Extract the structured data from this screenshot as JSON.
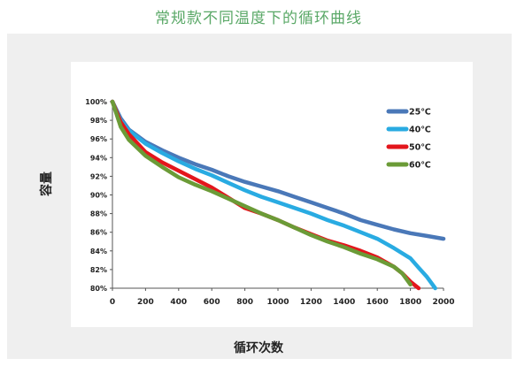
{
  "page": {
    "title": "常规款不同温度下的循环曲线"
  },
  "chart_data": {
    "type": "line",
    "title": "",
    "xlabel": "循环次数",
    "ylabel": "容量",
    "xlim": [
      0,
      2000
    ],
    "ylim": [
      80,
      100
    ],
    "x_ticks": [
      0,
      200,
      400,
      600,
      800,
      1000,
      1200,
      1400,
      1600,
      1800,
      2000
    ],
    "y_ticks": [
      80,
      82,
      84,
      86,
      88,
      90,
      92,
      94,
      96,
      98,
      100
    ],
    "y_tick_suffix": "%",
    "grid": false,
    "legend_position": "top-right",
    "series": [
      {
        "name": "25℃",
        "color": "#4a78b8",
        "x": [
          0,
          50,
          100,
          200,
          300,
          400,
          500,
          600,
          700,
          800,
          900,
          1000,
          1100,
          1200,
          1300,
          1400,
          1500,
          1600,
          1700,
          1800,
          1900,
          2000
        ],
        "y": [
          100,
          98.2,
          97.0,
          95.7,
          94.8,
          94.0,
          93.3,
          92.7,
          92.0,
          91.4,
          90.9,
          90.4,
          89.8,
          89.2,
          88.6,
          88.0,
          87.3,
          86.8,
          86.3,
          85.9,
          85.6,
          85.3
        ]
      },
      {
        "name": "40℃",
        "color": "#29abe2",
        "x": [
          0,
          50,
          100,
          200,
          300,
          400,
          500,
          600,
          700,
          800,
          900,
          1000,
          1100,
          1200,
          1300,
          1400,
          1500,
          1600,
          1700,
          1800,
          1850,
          1900,
          1950
        ],
        "y": [
          100,
          98.0,
          96.9,
          95.5,
          94.5,
          93.6,
          92.8,
          92.1,
          91.3,
          90.5,
          89.8,
          89.2,
          88.6,
          88.0,
          87.3,
          86.7,
          86.0,
          85.3,
          84.3,
          83.2,
          82.2,
          81.2,
          80.0
        ]
      },
      {
        "name": "50℃",
        "color": "#e3161c",
        "x": [
          0,
          50,
          100,
          200,
          300,
          400,
          500,
          600,
          700,
          800,
          900,
          1000,
          1100,
          1200,
          1300,
          1400,
          1500,
          1600,
          1700,
          1750,
          1800,
          1850
        ],
        "y": [
          100,
          97.8,
          96.5,
          94.6,
          93.5,
          92.6,
          91.7,
          90.8,
          89.7,
          88.6,
          88.0,
          87.3,
          86.5,
          85.8,
          85.1,
          84.6,
          84.0,
          83.3,
          82.3,
          81.6,
          80.7,
          80.0
        ]
      },
      {
        "name": "60℃",
        "color": "#6b9b37",
        "x": [
          0,
          50,
          100,
          200,
          300,
          400,
          500,
          600,
          700,
          800,
          900,
          1000,
          1100,
          1200,
          1300,
          1400,
          1500,
          1600,
          1700,
          1750,
          1800
        ],
        "y": [
          100,
          97.3,
          95.9,
          94.2,
          93.0,
          91.9,
          91.1,
          90.4,
          89.6,
          88.8,
          88.0,
          87.3,
          86.5,
          85.7,
          85.0,
          84.4,
          83.7,
          83.1,
          82.3,
          81.6,
          80.4
        ]
      }
    ]
  }
}
